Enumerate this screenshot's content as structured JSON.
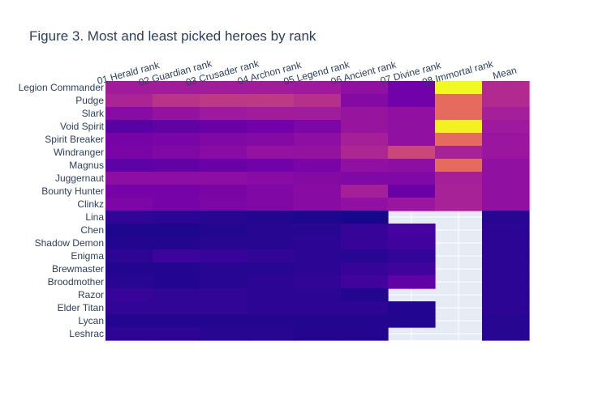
{
  "chart_data": {
    "type": "heatmap",
    "title": "Figure 3. Most and least picked heroes by rank",
    "x_categories": [
      "01 Herald rank",
      "02 Guardian rank",
      "03 Crusader rank",
      "04 Archon rank",
      "05 Legend rank",
      "06 Ancient rank",
      "07 Divine rank",
      "08 Immortal rank",
      "Mean"
    ],
    "y_categories": [
      "Legion Commander",
      "Pudge",
      "Slark",
      "Void Spirit",
      "Spirit Breaker",
      "Windranger",
      "Magnus",
      "Juggernaut",
      "Bounty Hunter",
      "Clinkz",
      "Lina",
      "Chen",
      "Shadow Demon",
      "Enigma",
      "Brewmaster",
      "Broodmother",
      "Razor",
      "Elder Titan",
      "Lycan",
      "Leshrac"
    ],
    "colorscale": [
      "#0d0887",
      "#46039f",
      "#7201a8",
      "#9c179e",
      "#bd3786",
      "#d8576b",
      "#ed7953",
      "#fb9f3a",
      "#fdca26",
      "#f0f921"
    ],
    "missing_color": "#e5ecf6",
    "zrange": [
      0,
      1
    ],
    "z": [
      [
        0.35,
        0.35,
        0.35,
        0.35,
        0.34,
        0.3,
        0.22,
        1.0,
        0.4
      ],
      [
        0.38,
        0.43,
        0.45,
        0.45,
        0.42,
        0.27,
        0.22,
        0.62,
        0.4
      ],
      [
        0.28,
        0.31,
        0.34,
        0.35,
        0.35,
        0.32,
        0.3,
        0.62,
        0.36
      ],
      [
        0.16,
        0.18,
        0.2,
        0.22,
        0.25,
        0.32,
        0.3,
        0.98,
        0.34
      ],
      [
        0.23,
        0.24,
        0.26,
        0.27,
        0.29,
        0.36,
        0.3,
        0.62,
        0.33
      ],
      [
        0.24,
        0.26,
        0.28,
        0.31,
        0.31,
        0.39,
        0.5,
        0.37,
        0.33
      ],
      [
        0.17,
        0.18,
        0.2,
        0.22,
        0.24,
        0.3,
        0.29,
        0.62,
        0.3
      ],
      [
        0.29,
        0.29,
        0.29,
        0.28,
        0.27,
        0.26,
        0.26,
        0.36,
        0.3
      ],
      [
        0.23,
        0.23,
        0.24,
        0.26,
        0.28,
        0.36,
        0.2,
        0.37,
        0.3
      ],
      [
        0.25,
        0.23,
        0.25,
        0.26,
        0.28,
        0.3,
        0.33,
        0.37,
        0.3
      ],
      [
        0.07,
        0.06,
        0.05,
        0.04,
        0.03,
        0.02,
        null,
        null,
        0.05
      ],
      [
        0.03,
        0.03,
        0.04,
        0.05,
        0.05,
        0.08,
        0.11,
        null,
        0.06
      ],
      [
        0.04,
        0.04,
        0.05,
        0.05,
        0.06,
        0.08,
        0.1,
        null,
        0.06
      ],
      [
        0.06,
        0.09,
        0.08,
        0.07,
        0.06,
        0.05,
        0.07,
        null,
        0.06
      ],
      [
        0.04,
        0.04,
        0.05,
        0.05,
        0.06,
        0.08,
        0.1,
        null,
        0.06
      ],
      [
        0.05,
        0.04,
        0.05,
        0.06,
        0.07,
        0.1,
        0.18,
        null,
        0.06
      ],
      [
        0.08,
        0.07,
        0.07,
        0.06,
        0.06,
        0.04,
        null,
        null,
        0.06
      ],
      [
        0.07,
        0.07,
        0.07,
        0.06,
        0.06,
        0.06,
        0.04,
        null,
        0.06
      ],
      [
        0.04,
        0.04,
        0.04,
        0.04,
        0.04,
        0.04,
        0.04,
        null,
        0.05
      ],
      [
        0.06,
        0.06,
        0.05,
        0.05,
        0.04,
        0.04,
        null,
        null,
        0.05
      ]
    ],
    "grid": true,
    "legend": "none"
  }
}
